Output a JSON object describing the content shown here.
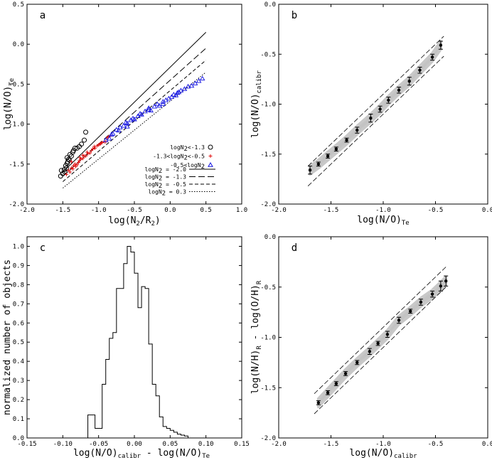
{
  "chart_data": [
    {
      "id": "a",
      "type": "scatter",
      "panel_label": "a",
      "xlabel": "log(N2/R2)",
      "ylabel": "log(N/O)Te",
      "xlim": [
        -2.0,
        1.0
      ],
      "ylim": [
        -2.0,
        0.5
      ],
      "x_ticks": [
        "-2.0",
        "-1.5",
        "-1.0",
        "-0.5",
        "0.0",
        "0.5",
        "1.0"
      ],
      "y_ticks": [
        "0.5",
        "0.0",
        "-0.5",
        "-1.0",
        "-1.5",
        "-2.0"
      ],
      "legend_position": "lower-right",
      "series": [
        {
          "name": "logN2<-1.3",
          "marker": "circle",
          "color": "#000000",
          "x": [
            -1.53,
            -1.5,
            -1.52,
            -1.48,
            -1.46,
            -1.45,
            -1.44,
            -1.47,
            -1.43,
            -1.42,
            -1.41,
            -1.44,
            -1.4,
            -1.38,
            -1.36,
            -1.35,
            -1.33,
            -1.3,
            -1.27,
            -1.24,
            -1.2,
            -1.18
          ],
          "y": [
            -1.65,
            -1.62,
            -1.58,
            -1.57,
            -1.52,
            -1.55,
            -1.49,
            -1.6,
            -1.47,
            -1.44,
            -1.45,
            -1.42,
            -1.38,
            -1.4,
            -1.35,
            -1.33,
            -1.3,
            -1.3,
            -1.28,
            -1.25,
            -1.2,
            -1.1
          ]
        },
        {
          "name": "-1.3<logN2<-0.5",
          "marker": "plus",
          "color": "#e01010",
          "x": [
            -1.45,
            -1.42,
            -1.4,
            -1.38,
            -1.36,
            -1.35,
            -1.33,
            -1.3,
            -1.28,
            -1.27,
            -1.25,
            -1.22,
            -1.2,
            -1.18,
            -1.15,
            -1.12,
            -1.1,
            -1.08,
            -1.05,
            -1.02,
            -1.0,
            -0.97,
            -0.95,
            -0.92,
            -0.9,
            -0.88,
            -0.86,
            -0.84,
            -1.32,
            -1.26,
            -1.16,
            -1.06,
            -0.98,
            -1.38,
            -1.22
          ],
          "y": [
            -1.63,
            -1.58,
            -1.6,
            -1.55,
            -1.56,
            -1.52,
            -1.5,
            -1.51,
            -1.48,
            -1.46,
            -1.44,
            -1.43,
            -1.4,
            -1.4,
            -1.37,
            -1.36,
            -1.33,
            -1.31,
            -1.3,
            -1.27,
            -1.26,
            -1.24,
            -1.23,
            -1.22,
            -1.22,
            -1.17,
            -1.16,
            -1.15,
            -1.53,
            -1.42,
            -1.35,
            -1.28,
            -1.25,
            -1.47,
            -1.39
          ]
        },
        {
          "name": "-0.5<logN2",
          "marker": "triangle",
          "color": "#1010e0",
          "x": [
            -0.9,
            -0.85,
            -0.82,
            -0.8,
            -0.75,
            -0.72,
            -0.7,
            -0.65,
            -0.62,
            -0.6,
            -0.55,
            -0.52,
            -0.5,
            -0.45,
            -0.42,
            -0.4,
            -0.35,
            -0.3,
            -0.27,
            -0.22,
            -0.18,
            -0.15,
            -0.1,
            -0.06,
            -0.02,
            0.02,
            0.05,
            0.08,
            0.12,
            0.15,
            0.2,
            0.25,
            0.3,
            0.35,
            0.4,
            0.45,
            -0.6,
            -0.3,
            -0.1,
            0.1
          ],
          "y": [
            -1.2,
            -1.18,
            -1.13,
            -1.12,
            -1.07,
            -1.08,
            -1.04,
            -1.02,
            -0.98,
            -0.99,
            -0.95,
            -0.93,
            -0.94,
            -0.9,
            -0.87,
            -0.88,
            -0.84,
            -0.8,
            -0.83,
            -0.78,
            -0.75,
            -0.77,
            -0.72,
            -0.7,
            -0.68,
            -0.66,
            -0.63,
            -0.64,
            -0.6,
            -0.58,
            -0.56,
            -0.53,
            -0.52,
            -0.49,
            -0.46,
            -0.43,
            -1.03,
            -0.82,
            -0.75,
            -0.61
          ]
        }
      ],
      "lines": [
        {
          "name": "logN2 = -2.0",
          "style": "solid",
          "x": [
            -1.5,
            0.5
          ],
          "y": [
            -1.6,
            0.15
          ]
        },
        {
          "name": "logN2 = -1.3",
          "style": "long-dash",
          "x": [
            -1.5,
            0.5
          ],
          "y": [
            -1.65,
            -0.05
          ]
        },
        {
          "name": "logN2 = -0.5",
          "style": "dash",
          "x": [
            -1.5,
            0.5
          ],
          "y": [
            -1.72,
            -0.2
          ]
        },
        {
          "name": "logN2 = 0.3",
          "style": "dot",
          "x": [
            -1.5,
            0.5
          ],
          "y": [
            -1.8,
            -0.35
          ]
        }
      ]
    },
    {
      "id": "b",
      "type": "scatter",
      "panel_label": "b",
      "xlabel": "log(N/O)Te",
      "ylabel": "log(N/O)calibr",
      "xlim": [
        -2.0,
        0.0
      ],
      "ylim": [
        -2.0,
        0.0
      ],
      "x_ticks": [
        "-2.0",
        "-1.5",
        "-1.0",
        "-0.5",
        "0.0"
      ],
      "y_ticks": [
        "0.0",
        "-0.5",
        "-1.0",
        "-1.5",
        "-2.0"
      ],
      "series": [
        {
          "name": "binned means",
          "x": [
            -1.7,
            -1.62,
            -1.53,
            -1.45,
            -1.35,
            -1.25,
            -1.12,
            -1.03,
            -0.95,
            -0.85,
            -0.75,
            -0.65,
            -0.53,
            -0.45
          ],
          "y": [
            -1.66,
            -1.6,
            -1.52,
            -1.45,
            -1.36,
            -1.26,
            -1.14,
            -1.05,
            -0.96,
            -0.86,
            -0.77,
            -0.66,
            -0.53,
            -0.41
          ],
          "err": [
            0.04,
            0.02,
            0.02,
            0.02,
            0.02,
            0.03,
            0.04,
            0.03,
            0.03,
            0.03,
            0.04,
            0.03,
            0.03,
            0.04
          ]
        }
      ],
      "band_x": [
        -1.72,
        -0.42
      ],
      "dashed_offsets": [
        -0.1,
        0.1
      ]
    },
    {
      "id": "c",
      "type": "bar",
      "panel_label": "c",
      "xlabel": "log(N/O)calibr - log(N/O)Te",
      "ylabel": "normalized number of objects",
      "xlim": [
        -0.15,
        0.15
      ],
      "ylim": [
        0.0,
        1.05
      ],
      "x_ticks": [
        "-0.15",
        "-0.10",
        "-0.05",
        "0.00",
        "0.05",
        "0.10",
        "0.15"
      ],
      "y_ticks": [
        "1.0",
        "0.9",
        "0.8",
        "0.7",
        "0.6",
        "0.5",
        "0.4",
        "0.3",
        "0.2",
        "0.1",
        "0.0"
      ],
      "bin_edges": [
        -0.065,
        -0.055,
        -0.045,
        -0.04,
        -0.035,
        -0.03,
        -0.025,
        -0.02,
        -0.015,
        -0.01,
        -0.005,
        0.0,
        0.005,
        0.01,
        0.015,
        0.02,
        0.025,
        0.03,
        0.035,
        0.04,
        0.045,
        0.05,
        0.055,
        0.06,
        0.065,
        0.07,
        0.075,
        0.08
      ],
      "values": [
        0.12,
        0.05,
        0.28,
        0.41,
        0.52,
        0.55,
        0.78,
        0.78,
        0.91,
        1.0,
        0.97,
        0.86,
        0.68,
        0.79,
        0.78,
        0.49,
        0.28,
        0.22,
        0.11,
        0.06,
        0.05,
        0.04,
        0.03,
        0.02,
        0.015,
        0.01,
        0.0
      ]
    },
    {
      "id": "d",
      "type": "scatter",
      "panel_label": "d",
      "xlabel": "log(N/O)calibr",
      "ylabel": "log(N/H)R - log(O/H)R",
      "xlim": [
        -2.0,
        0.0
      ],
      "ylim": [
        -2.0,
        0.0
      ],
      "x_ticks": [
        "-2.0",
        "-1.5",
        "-1.0",
        "-0.5",
        "0.0"
      ],
      "y_ticks": [
        "0.0",
        "-0.5",
        "-1.0",
        "-1.5",
        "-2.0"
      ],
      "series": [
        {
          "name": "binned means",
          "x": [
            -1.62,
            -1.53,
            -1.45,
            -1.36,
            -1.25,
            -1.13,
            -1.05,
            -0.96,
            -0.85,
            -0.74,
            -0.64,
            -0.53,
            -0.45,
            -0.4
          ],
          "y": [
            -1.65,
            -1.55,
            -1.46,
            -1.36,
            -1.25,
            -1.14,
            -1.06,
            -0.97,
            -0.83,
            -0.74,
            -0.65,
            -0.57,
            -0.49,
            -0.44
          ],
          "err": [
            0.02,
            0.02,
            0.02,
            0.02,
            0.02,
            0.03,
            0.02,
            0.03,
            0.03,
            0.02,
            0.03,
            0.03,
            0.05,
            0.05
          ]
        }
      ],
      "band_x": [
        -1.66,
        -0.4
      ],
      "dashed_offsets": [
        -0.1,
        0.1
      ]
    }
  ]
}
